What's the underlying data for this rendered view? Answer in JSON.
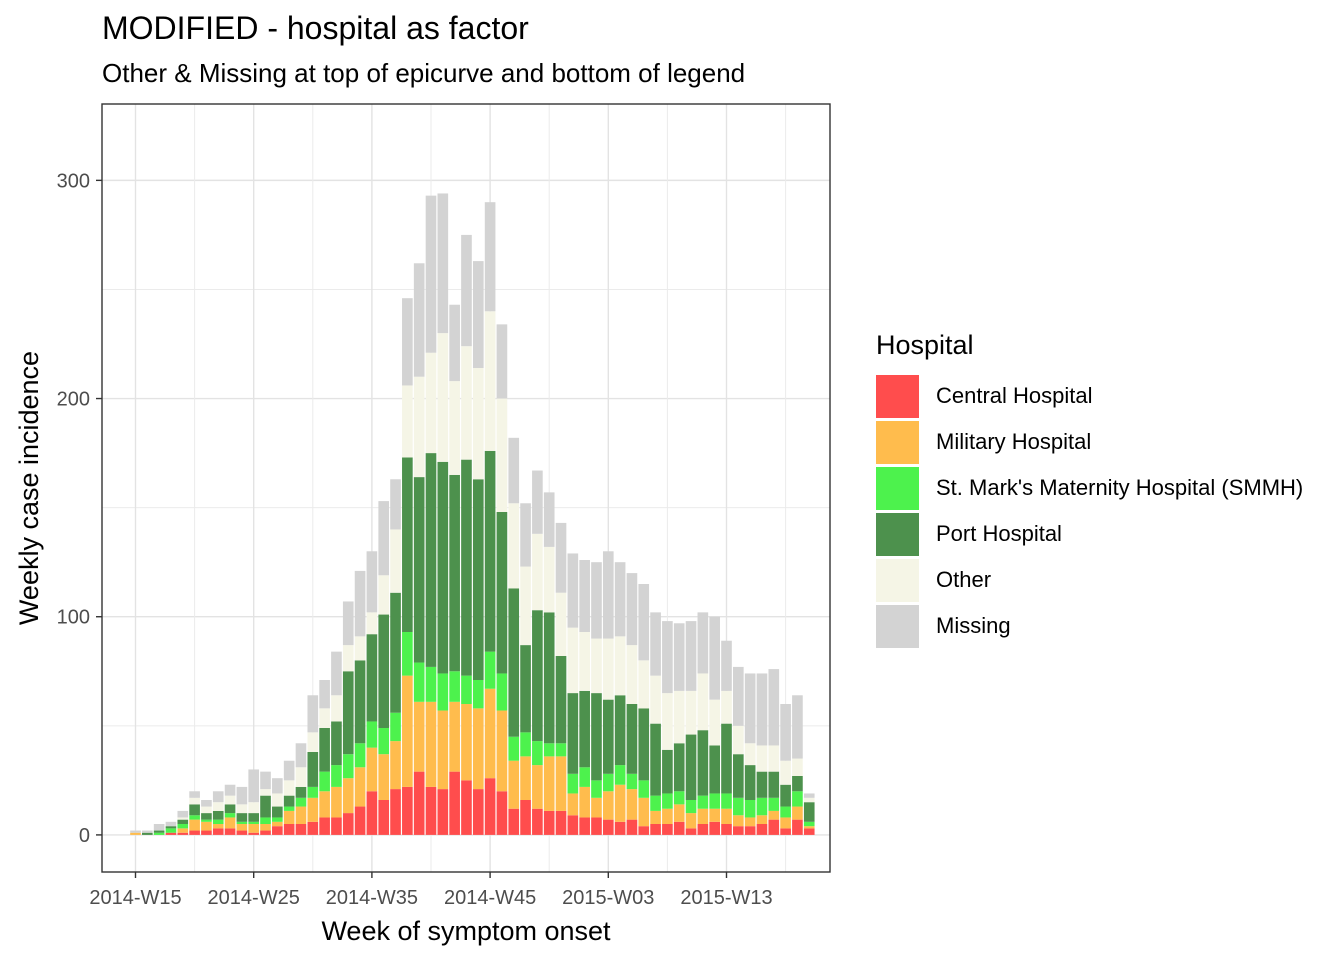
{
  "chart_data": {
    "type": "bar",
    "stacked": true,
    "title": "MODIFIED - hospital as factor",
    "subtitle": "Other & Missing at top of epicurve and bottom of legend",
    "xlabel": "Week of symptom onset",
    "ylabel": "Weekly case incidence",
    "ylim": [
      -17,
      335
    ],
    "yticks": [
      0,
      100,
      200,
      300
    ],
    "grid": true,
    "legend_title": "Hospital",
    "legend_position": "right",
    "x_tick_labels": [
      "2014-W15",
      "2014-W25",
      "2014-W35",
      "2014-W45",
      "2015-W03",
      "2015-W13"
    ],
    "x_tick_index": [
      0,
      10,
      20,
      30,
      40,
      50
    ],
    "categories": [
      "2014-W15",
      "2014-W16",
      "2014-W17",
      "2014-W18",
      "2014-W19",
      "2014-W20",
      "2014-W21",
      "2014-W22",
      "2014-W23",
      "2014-W24",
      "2014-W25",
      "2014-W26",
      "2014-W27",
      "2014-W28",
      "2014-W29",
      "2014-W30",
      "2014-W31",
      "2014-W32",
      "2014-W33",
      "2014-W34",
      "2014-W35",
      "2014-W36",
      "2014-W37",
      "2014-W38",
      "2014-W39",
      "2014-W40",
      "2014-W41",
      "2014-W42",
      "2014-W43",
      "2014-W44",
      "2014-W45",
      "2014-W46",
      "2014-W47",
      "2014-W48",
      "2014-W49",
      "2014-W50",
      "2014-W51",
      "2014-W52",
      "2015-W01",
      "2015-W02",
      "2015-W03",
      "2015-W04",
      "2015-W05",
      "2015-W06",
      "2015-W07",
      "2015-W08",
      "2015-W09",
      "2015-W10",
      "2015-W11",
      "2015-W12",
      "2015-W13",
      "2015-W14",
      "2015-W15",
      "2015-W16",
      "2015-W17",
      "2015-W18",
      "2015-W19",
      "2015-W20"
    ],
    "series": [
      {
        "name": "Central Hospital",
        "color": "#FF4D4D",
        "values": [
          0,
          0,
          0,
          1,
          1,
          2,
          2,
          3,
          3,
          2,
          1,
          2,
          4,
          5,
          5,
          6,
          8,
          8,
          10,
          13,
          20,
          16,
          21,
          22,
          29,
          22,
          21,
          29,
          25,
          21,
          26,
          20,
          12,
          16,
          12,
          11,
          11,
          9,
          8,
          8,
          7,
          6,
          7,
          4,
          5,
          5,
          6,
          3,
          5,
          6,
          5,
          4,
          4,
          5,
          7,
          3,
          7,
          3
        ]
      },
      {
        "name": "Military Hospital",
        "color": "#FFBC4D",
        "values": [
          1,
          0,
          0,
          0,
          2,
          5,
          4,
          2,
          5,
          3,
          4,
          3,
          2,
          6,
          8,
          11,
          12,
          14,
          16,
          18,
          20,
          21,
          22,
          51,
          32,
          39,
          36,
          32,
          35,
          37,
          41,
          37,
          22,
          20,
          20,
          25,
          25,
          10,
          14,
          9,
          13,
          17,
          14,
          13,
          6,
          7,
          8,
          7,
          7,
          6,
          7,
          5,
          4,
          4,
          4,
          5,
          6,
          1
        ]
      },
      {
        "name": "St. Mark's Maternity Hospital (SMMH)",
        "color": "#4DF24D",
        "values": [
          0,
          0,
          1,
          2,
          2,
          2,
          1,
          2,
          2,
          1,
          1,
          3,
          2,
          2,
          4,
          5,
          9,
          10,
          11,
          11,
          12,
          12,
          13,
          20,
          18,
          16,
          17,
          14,
          13,
          13,
          17,
          17,
          11,
          11,
          11,
          6,
          6,
          9,
          9,
          8,
          8,
          9,
          7,
          8,
          7,
          7,
          6,
          6,
          6,
          7,
          7,
          8,
          8,
          8,
          6,
          5,
          7,
          2
        ]
      },
      {
        "name": "Port Hospital",
        "color": "#4D914D",
        "values": [
          0,
          1,
          1,
          1,
          2,
          5,
          3,
          4,
          4,
          4,
          4,
          10,
          5,
          5,
          5,
          16,
          20,
          20,
          38,
          38,
          40,
          52,
          55,
          80,
          85,
          98,
          97,
          90,
          99,
          92,
          92,
          74,
          68,
          40,
          60,
          60,
          40,
          37,
          35,
          40,
          34,
          32,
          32,
          33,
          33,
          20,
          22,
          30,
          30,
          22,
          32,
          20,
          16,
          12,
          12,
          10,
          7,
          9
        ]
      },
      {
        "name": "Other",
        "color": "#F5F5E6",
        "values": [
          0,
          0,
          0,
          0,
          1,
          3,
          3,
          4,
          4,
          4,
          5,
          3,
          6,
          7,
          9,
          9,
          9,
          12,
          12,
          11,
          10,
          18,
          29,
          33,
          46,
          46,
          59,
          43,
          52,
          51,
          64,
          52,
          39,
          36,
          35,
          30,
          29,
          30,
          27,
          25,
          28,
          27,
          27,
          22,
          22,
          26,
          24,
          20,
          26,
          21,
          15,
          13,
          10,
          12,
          12,
          11,
          8,
          2
        ]
      },
      {
        "name": "Missing",
        "color": "#D3D3D3",
        "values": [
          1,
          1,
          3,
          2,
          3,
          3,
          3,
          5,
          5,
          8,
          15,
          8,
          7,
          9,
          11,
          17,
          13,
          20,
          20,
          30,
          28,
          34,
          23,
          40,
          52,
          72,
          64,
          35,
          51,
          49,
          50,
          34,
          30,
          29,
          29,
          25,
          32,
          34,
          33,
          35,
          40,
          34,
          33,
          35,
          29,
          33,
          31,
          32,
          28,
          38,
          23,
          27,
          32,
          33,
          35,
          26,
          29,
          2
        ]
      }
    ]
  }
}
